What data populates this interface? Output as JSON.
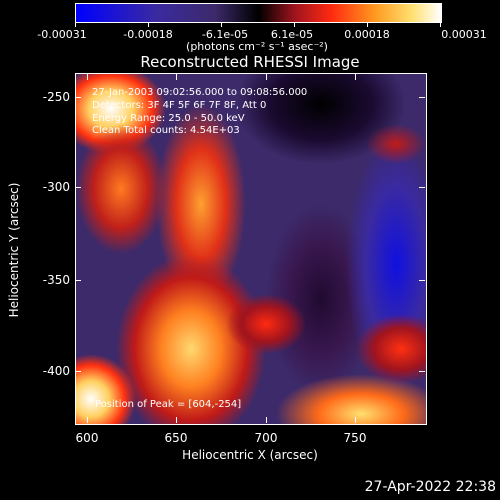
{
  "colorbar": {
    "ticks": [
      "-0.00031",
      "-0.00018",
      "-6.1e-05",
      "6.1e-05",
      "0.00018",
      "0.00031"
    ],
    "units": "(photons cm⁻² s⁻¹ asec⁻²)"
  },
  "title": "Reconstructed RHESSI Image",
  "info": {
    "line1": "27-Jan-2003 09:02:56.000 to 09:08:56.000",
    "line2": "Detectors: 3F 4F 5F 6F 7F 8F, Att 0",
    "line3": "Energy Range: 25.0 - 50.0 keV",
    "line4": "Clean    Total counts: 4.54E+03",
    "peak": "Position of Peak = [604,-254]"
  },
  "axes": {
    "x_title": "Heliocentric X (arcsec)",
    "y_title": "Heliocentric Y (arcsec)",
    "x_ticks": [
      "600",
      "650",
      "700",
      "750"
    ],
    "y_ticks": [
      "-250",
      "-300",
      "-350",
      "-400"
    ]
  },
  "timestamp": "27-Apr-2022 22:38",
  "colors": {
    "background": "#000000",
    "low": "#0000ff",
    "mid": "#3c2a6a",
    "high": "#ffe070"
  }
}
